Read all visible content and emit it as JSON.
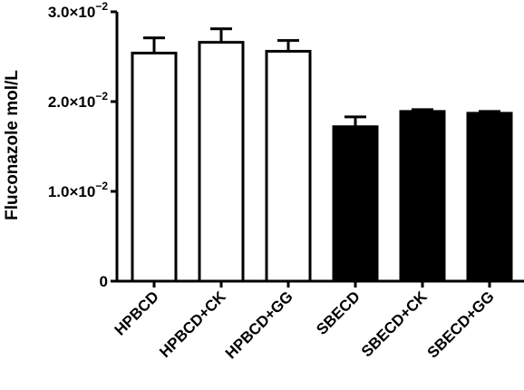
{
  "chart_data": {
    "type": "bar",
    "ylabel": "Fluconazole mol/L",
    "categories": [
      "HPBCD",
      "HPBCD+CK",
      "HPBCD+GG",
      "SBECD",
      "SBECD+CK",
      "SBECD+GG"
    ],
    "values": [
      0.0254,
      0.0266,
      0.0256,
      0.0172,
      0.0189,
      0.0187
    ],
    "errors": [
      0.0017,
      0.0015,
      0.0012,
      0.0011,
      0.0002,
      0.0002
    ],
    "bar_fills": [
      "#ffffff",
      "#ffffff",
      "#ffffff",
      "#000000",
      "#000000",
      "#000000"
    ],
    "ylim": [
      0,
      0.03
    ],
    "yticks": [
      {
        "value": 0,
        "mantissa": "0",
        "exp": ""
      },
      {
        "value": 0.01,
        "mantissa": "1.0×10",
        "exp": "−2"
      },
      {
        "value": 0.02,
        "mantissa": "2.0×10",
        "exp": "−2"
      },
      {
        "value": 0.03,
        "mantissa": "3.0×10",
        "exp": "−2"
      }
    ],
    "grid": false,
    "legend": "none"
  }
}
